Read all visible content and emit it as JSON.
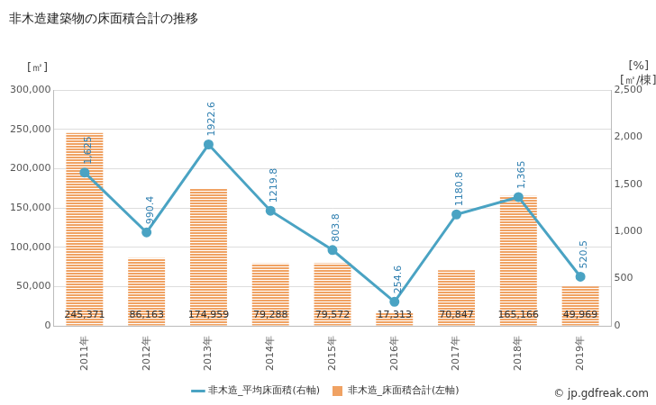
{
  "chart_data": {
    "type": "bar",
    "title": "非木造建築物の床面積合計の推移",
    "y_label": "[㎡]",
    "y2_label": "[㎡/棟]",
    "y2_extra_label": "[%]",
    "source": "© jp.gdfreak.com",
    "categories": [
      "2011年",
      "2012年",
      "2013年",
      "2014年",
      "2015年",
      "2016年",
      "2017年",
      "2018年",
      "2019年"
    ],
    "series": [
      {
        "name": "非木造_床面積合計(左軸)",
        "type": "bar",
        "color": "#f0a263",
        "axis": "y",
        "values": [
          245371,
          86163,
          174959,
          79288,
          79572,
          17313,
          70847,
          165166,
          49969
        ],
        "value_labels": [
          "245,371",
          "86,163",
          "174,959",
          "79,288",
          "79,572",
          "17,313",
          "70,847",
          "165,166",
          "49,969"
        ]
      },
      {
        "name": "非木造_平均床面積(右軸)",
        "type": "line",
        "color": "#4aa3c3",
        "axis": "y2",
        "marker": "circle",
        "line_style": "solid",
        "values": [
          1625,
          990.4,
          1922.6,
          1219.8,
          803.8,
          254.6,
          1180.8,
          1365,
          520.5
        ],
        "value_labels": [
          "1,625",
          "990.4",
          "1922.6",
          "1219.8",
          "803.8",
          "254.6",
          "1180.8",
          "1,365",
          "520.5"
        ]
      }
    ],
    "ylim": [
      0,
      300000
    ],
    "yticks": [
      0,
      {
        "value": 50000,
        "label": "50,000"
      },
      {
        "value": 100000,
        "label": "100,000"
      },
      {
        "value": 150000,
        "label": "150,000"
      },
      {
        "value": 200000,
        "label": "200,000"
      },
      {
        "value": 250000,
        "label": "250,000"
      },
      {
        "value": 300000,
        "label": "300,000"
      }
    ],
    "y2lim": [
      0,
      2500
    ],
    "y2ticks": [
      0,
      500,
      {
        "value": 1000,
        "label": "1,000"
      },
      {
        "value": 1500,
        "label": "1,500"
      },
      {
        "value": 2000,
        "label": "2,000"
      },
      {
        "value": 2500,
        "label": "2,500"
      }
    ],
    "grid": true,
    "legend": "bottom",
    "data_labels": true
  }
}
